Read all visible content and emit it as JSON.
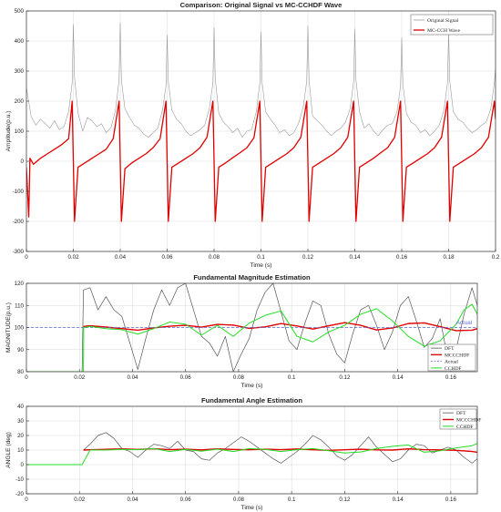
{
  "colors": {
    "original": "#9a9a9a",
    "mccchdf": "#e00000",
    "dft": "#555555",
    "actual": "#5b6fd6",
    "cchdf": "#22dd22"
  },
  "chart_data": [
    {
      "type": "line",
      "title": "Comparison: Original Signal vs MC-CCHDF Wave",
      "xlabel": "Time (s)",
      "ylabel": "Amplitude(p.u.)",
      "xlim": [
        0,
        0.2
      ],
      "ylim": [
        -300,
        500
      ],
      "xticks": [
        0,
        0.02,
        0.04,
        0.06,
        0.08,
        0.1,
        0.12,
        0.14,
        0.16,
        0.18,
        0.2
      ],
      "xtick_labels": [
        "0",
        "0.02",
        "0.04",
        "0.06",
        "0.08",
        "0.1",
        "0.12",
        "0.14",
        "0.16",
        "0.18",
        "0.2"
      ],
      "yticks": [
        -300,
        -200,
        -100,
        0,
        100,
        200,
        300,
        400,
        500
      ],
      "ytick_labels": [
        "-300",
        "-200",
        "-100",
        "0",
        "100",
        "200",
        "300",
        "400",
        "500"
      ],
      "grid": true,
      "legend_position": "top-right",
      "series": [
        {
          "name": "Original Signal",
          "key": "original",
          "x": [
            0,
            0.002,
            0.004,
            0.006,
            0.008,
            0.01,
            0.012,
            0.014,
            0.016,
            0.018,
            0.0195,
            0.02,
            0.0205,
            0.022,
            0.024,
            0.026,
            0.028,
            0.03,
            0.032,
            0.034,
            0.036,
            0.038,
            0.0395,
            0.04,
            0.0405,
            0.042,
            0.044,
            0.046,
            0.048,
            0.05,
            0.052,
            0.054,
            0.056,
            0.058,
            0.0595,
            0.06,
            0.0605,
            0.062,
            0.064,
            0.066,
            0.068,
            0.07,
            0.072,
            0.074,
            0.076,
            0.078,
            0.0795,
            0.08,
            0.0805,
            0.082,
            0.084,
            0.086,
            0.088,
            0.09,
            0.092,
            0.094,
            0.096,
            0.098,
            0.0995,
            0.1,
            0.1005,
            0.102,
            0.104,
            0.106,
            0.108,
            0.11,
            0.112,
            0.114,
            0.116,
            0.118,
            0.1195,
            0.12,
            0.1205,
            0.122,
            0.124,
            0.126,
            0.128,
            0.13,
            0.132,
            0.134,
            0.136,
            0.138,
            0.1395,
            0.14,
            0.1405,
            0.142,
            0.144,
            0.146,
            0.148,
            0.15,
            0.152,
            0.154,
            0.156,
            0.158,
            0.1595,
            0.16,
            0.1605,
            0.162,
            0.164,
            0.166,
            0.168,
            0.17,
            0.172,
            0.174,
            0.176,
            0.178,
            0.1795,
            0.18,
            0.1805,
            0.182,
            0.184,
            0.186,
            0.188,
            0.19,
            0.192,
            0.194,
            0.196,
            0.198,
            0.1995,
            0.2
          ],
          "y": [
            245,
            150,
            120,
            140,
            125,
            110,
            135,
            105,
            115,
            165,
            260,
            455,
            280,
            160,
            100,
            145,
            135,
            115,
            125,
            95,
            110,
            170,
            270,
            460,
            270,
            175,
            145,
            120,
            110,
            90,
            80,
            95,
            110,
            170,
            250,
            420,
            265,
            170,
            140,
            125,
            100,
            85,
            95,
            105,
            120,
            175,
            260,
            445,
            275,
            160,
            130,
            115,
            95,
            110,
            80,
            100,
            105,
            165,
            260,
            430,
            260,
            165,
            140,
            120,
            95,
            105,
            85,
            95,
            125,
            180,
            265,
            450,
            270,
            150,
            135,
            120,
            100,
            85,
            100,
            110,
            130,
            175,
            265,
            440,
            270,
            165,
            110,
            125,
            100,
            85,
            105,
            120,
            125,
            165,
            250,
            410,
            255,
            160,
            130,
            120,
            95,
            105,
            85,
            100,
            120,
            170,
            260,
            430,
            265,
            165,
            140,
            130,
            110,
            95,
            105,
            120,
            130,
            175,
            260,
            310
          ]
        },
        {
          "name": "MC-CCH Wave",
          "key": "mccchdf",
          "x": [
            0,
            0.001,
            0.0015,
            0.003,
            0.006,
            0.009,
            0.012,
            0.015,
            0.018,
            0.0195,
            0.0205,
            0.022,
            0.025,
            0.028,
            0.031,
            0.034,
            0.037,
            0.0395,
            0.0405,
            0.042,
            0.045,
            0.048,
            0.051,
            0.054,
            0.057,
            0.0595,
            0.0605,
            0.062,
            0.065,
            0.068,
            0.071,
            0.074,
            0.077,
            0.0795,
            0.0805,
            0.082,
            0.085,
            0.088,
            0.091,
            0.094,
            0.097,
            0.0995,
            0.1005,
            0.102,
            0.105,
            0.108,
            0.111,
            0.114,
            0.117,
            0.1195,
            0.1205,
            0.122,
            0.125,
            0.128,
            0.131,
            0.134,
            0.137,
            0.1395,
            0.1405,
            0.142,
            0.145,
            0.148,
            0.151,
            0.154,
            0.157,
            0.1595,
            0.1605,
            0.162,
            0.165,
            0.168,
            0.171,
            0.174,
            0.177,
            0.1795,
            0.1805,
            0.182,
            0.185,
            0.188,
            0.191,
            0.194,
            0.197,
            0.1995,
            0.2
          ],
          "y": [
            -20,
            -185,
            10,
            -10,
            10,
            25,
            40,
            55,
            75,
            200,
            -200,
            -20,
            -5,
            10,
            25,
            40,
            75,
            200,
            -200,
            -25,
            -5,
            10,
            25,
            45,
            75,
            200,
            -200,
            -20,
            -5,
            10,
            25,
            45,
            80,
            200,
            -200,
            -20,
            -5,
            12,
            28,
            45,
            78,
            200,
            -200,
            -20,
            -5,
            10,
            25,
            45,
            80,
            200,
            -200,
            -20,
            -5,
            10,
            25,
            45,
            80,
            200,
            -200,
            -20,
            -5,
            10,
            28,
            45,
            80,
            200,
            -200,
            -20,
            -5,
            10,
            25,
            45,
            80,
            200,
            -200,
            -20,
            -5,
            10,
            25,
            45,
            80,
            200,
            140
          ]
        }
      ]
    },
    {
      "type": "line",
      "title": "Fundamental Magnitude Estimation",
      "xlabel": "Time (s)",
      "ylabel": "MAGNITUDE(p.u.)",
      "xlim": [
        0,
        0.17
      ],
      "ylim": [
        80,
        120
      ],
      "xticks": [
        0,
        0.02,
        0.04,
        0.06,
        0.08,
        0.1,
        0.12,
        0.14,
        0.16
      ],
      "xtick_labels": [
        "0",
        "0.02",
        "0.04",
        "0.06",
        "0.08",
        "0.1",
        "0.12",
        "0.14",
        "0.16"
      ],
      "yticks": [
        80,
        90,
        100,
        110,
        120
      ],
      "ytick_labels": [
        "80",
        "90",
        "100",
        "110",
        "120"
      ],
      "grid": true,
      "legend_position": "bottom-right",
      "annotation": "Actual",
      "series": [
        {
          "name": "DFT",
          "key": "dft",
          "x": [
            0.021,
            0.0215,
            0.024,
            0.027,
            0.03,
            0.033,
            0.036,
            0.039,
            0.042,
            0.045,
            0.048,
            0.051,
            0.054,
            0.057,
            0.06,
            0.063,
            0.066,
            0.069,
            0.072,
            0.075,
            0.078,
            0.081,
            0.084,
            0.087,
            0.09,
            0.093,
            0.096,
            0.099,
            0.102,
            0.105,
            0.108,
            0.111,
            0.114,
            0.117,
            0.12,
            0.123,
            0.126,
            0.129,
            0.132,
            0.135,
            0.138,
            0.141,
            0.144,
            0.147,
            0.15,
            0.153,
            0.156,
            0.159,
            0.162,
            0.165,
            0.168,
            0.17
          ],
          "y": [
            80,
            117,
            118,
            108,
            114,
            108,
            105,
            93,
            81,
            95,
            108,
            117,
            110,
            118,
            120,
            108,
            96,
            93,
            87,
            96,
            80,
            88,
            95,
            108,
            116,
            120,
            107,
            94,
            90,
            102,
            112,
            110,
            97,
            88,
            84,
            97,
            108,
            110,
            101,
            90,
            98,
            110,
            114,
            103,
            91,
            95,
            104,
            85,
            90,
            106,
            118,
            110
          ]
        },
        {
          "name": "MCCCHDF",
          "key": "mccchdf",
          "x": [
            0.0215,
            0.024,
            0.03,
            0.036,
            0.042,
            0.048,
            0.054,
            0.06,
            0.066,
            0.072,
            0.078,
            0.084,
            0.09,
            0.096,
            0.102,
            0.108,
            0.114,
            0.12,
            0.126,
            0.132,
            0.138,
            0.144,
            0.15,
            0.156,
            0.162,
            0.168,
            0.17
          ],
          "y": [
            100.5,
            100.8,
            100.2,
            99.5,
            98.8,
            99.8,
            100.6,
            101,
            100.2,
            101.4,
            101.1,
            99.6,
            100.3,
            101.8,
            100.7,
            99.3,
            100.8,
            102.2,
            101,
            98.9,
            99.8,
            101.8,
            102.1,
            100.4,
            98.6,
            98.8,
            99.5
          ]
        },
        {
          "name": "Actual",
          "key": "actual",
          "x": [
            0,
            0.17
          ],
          "y": [
            100,
            100
          ]
        },
        {
          "name": "CCHDF",
          "key": "cchdf",
          "x": [
            0,
            0.0215,
            0.0216,
            0.024,
            0.03,
            0.036,
            0.042,
            0.048,
            0.054,
            0.06,
            0.066,
            0.072,
            0.078,
            0.084,
            0.09,
            0.096,
            0.102,
            0.108,
            0.114,
            0.12,
            0.126,
            0.132,
            0.138,
            0.144,
            0.15,
            0.156,
            0.162,
            0.165,
            0.168,
            0.17
          ],
          "y": [
            80,
            80,
            100,
            100.5,
            99.5,
            99,
            97,
            99.5,
            102.5,
            101.5,
            96.5,
            101,
            96,
            102,
            105.5,
            107.5,
            96,
            93.5,
            98,
            101,
            106,
            108.5,
            103,
            96,
            91.5,
            94,
            101.5,
            108,
            110.5,
            106
          ]
        }
      ]
    },
    {
      "type": "line",
      "title": "Fundamental Angle Estimation",
      "xlabel": "Time (s)",
      "ylabel": "ANGLE (deg)",
      "xlim": [
        0,
        0.17
      ],
      "ylim": [
        -20,
        40
      ],
      "xticks": [
        0,
        0.02,
        0.04,
        0.06,
        0.08,
        0.1,
        0.12,
        0.14,
        0.16
      ],
      "xtick_labels": [
        "0",
        "0.02",
        "0.04",
        "0.06",
        "0.08",
        "0.1",
        "0.12",
        "0.14",
        "0.16"
      ],
      "yticks": [
        -20,
        -10,
        0,
        10,
        20,
        30,
        40
      ],
      "ytick_labels": [
        "-20",
        "-10",
        "0",
        "10",
        "20",
        "30",
        "40"
      ],
      "grid": true,
      "legend_position": "top-right",
      "series": [
        {
          "name": "DFT",
          "key": "dft",
          "x": [
            0.0215,
            0.024,
            0.027,
            0.03,
            0.033,
            0.036,
            0.039,
            0.042,
            0.045,
            0.048,
            0.051,
            0.054,
            0.057,
            0.06,
            0.063,
            0.066,
            0.069,
            0.072,
            0.075,
            0.078,
            0.081,
            0.084,
            0.087,
            0.09,
            0.093,
            0.096,
            0.099,
            0.102,
            0.105,
            0.108,
            0.111,
            0.114,
            0.117,
            0.12,
            0.123,
            0.126,
            0.129,
            0.132,
            0.135,
            0.138,
            0.141,
            0.144,
            0.147,
            0.15,
            0.153,
            0.156,
            0.159,
            0.162,
            0.165,
            0.168,
            0.17
          ],
          "y": [
            10,
            14,
            20,
            22,
            18,
            11,
            9,
            5,
            10,
            14,
            13,
            11,
            16,
            10,
            9,
            4,
            3,
            8,
            11,
            15,
            19,
            16,
            12,
            8,
            4,
            1,
            5,
            9,
            14,
            20,
            17,
            12,
            6,
            3,
            7,
            13,
            19,
            12,
            7,
            2,
            4,
            10,
            14,
            13,
            8,
            10,
            12,
            10,
            5,
            1,
            4
          ]
        },
        {
          "name": "MCCCHDF",
          "key": "mccchdf",
          "x": [
            0.0215,
            0.024,
            0.03,
            0.036,
            0.042,
            0.048,
            0.054,
            0.06,
            0.066,
            0.072,
            0.078,
            0.084,
            0.09,
            0.096,
            0.102,
            0.108,
            0.114,
            0.12,
            0.126,
            0.132,
            0.138,
            0.144,
            0.15,
            0.156,
            0.162,
            0.168,
            0.17
          ],
          "y": [
            10,
            10.2,
            10.5,
            10.8,
            10.4,
            10.9,
            10.3,
            10.6,
            10.1,
            10.8,
            10.4,
            10.2,
            10.6,
            10.3,
            10.7,
            10.2,
            9.8,
            10.2,
            10.6,
            10.1,
            10,
            10.8,
            10.3,
            10.1,
            9.8,
            9,
            8.5
          ]
        },
        {
          "name": "CCHDF",
          "key": "cchdf",
          "x": [
            0,
            0.021,
            0.024,
            0.03,
            0.036,
            0.042,
            0.048,
            0.054,
            0.06,
            0.066,
            0.072,
            0.078,
            0.084,
            0.09,
            0.096,
            0.102,
            0.108,
            0.114,
            0.12,
            0.126,
            0.132,
            0.138,
            0.144,
            0.15,
            0.156,
            0.162,
            0.168,
            0.17
          ],
          "y": [
            0,
            0,
            10,
            10,
            10.5,
            10.2,
            11,
            9,
            10.5,
            9.2,
            10.6,
            9,
            11,
            10.5,
            9,
            10.2,
            11,
            9.5,
            8,
            8.7,
            11,
            12.6,
            13.5,
            8.5,
            9.5,
            11.5,
            13,
            14.5
          ]
        }
      ]
    }
  ]
}
